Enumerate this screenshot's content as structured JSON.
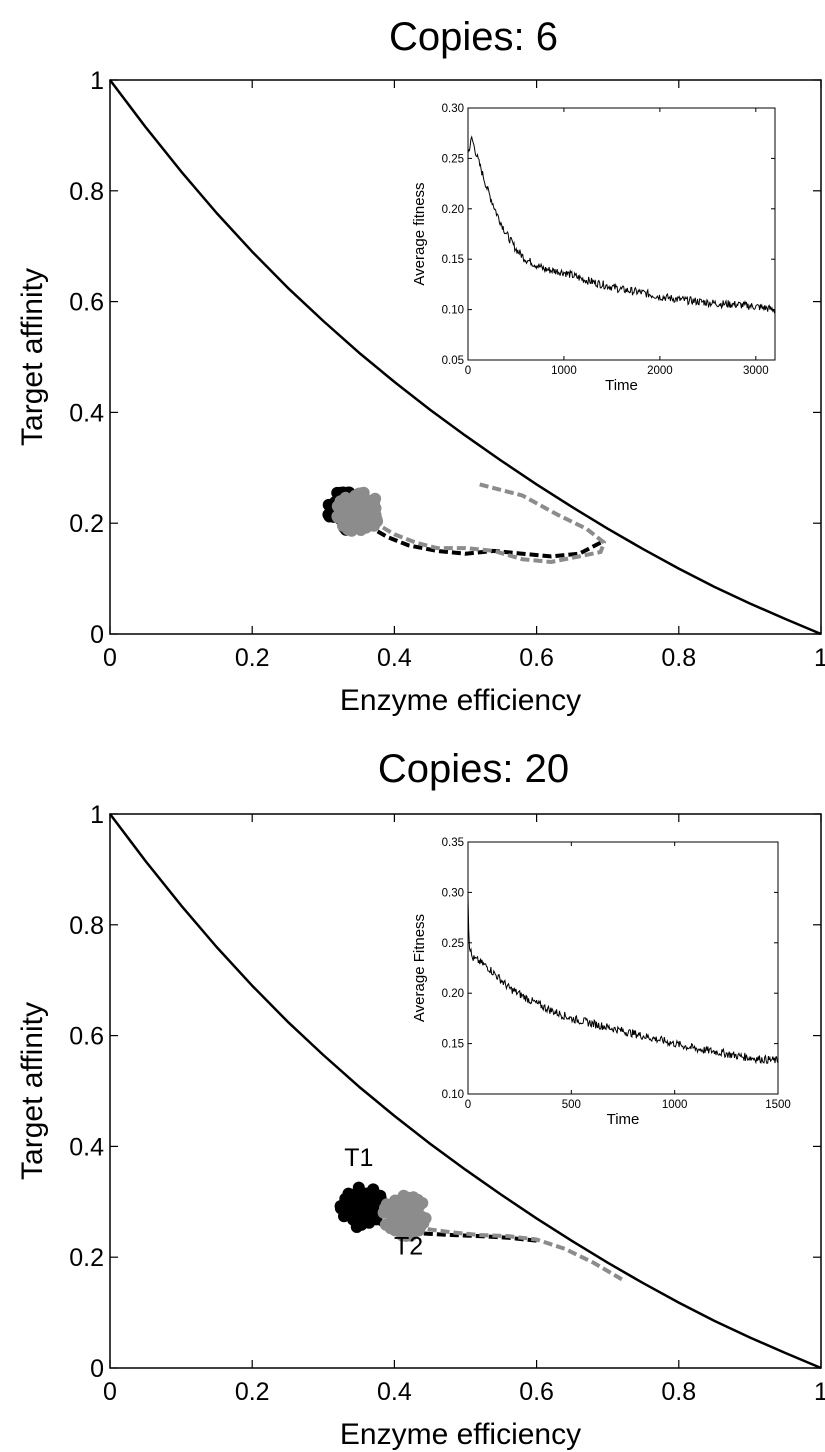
{
  "chart_data": [
    {
      "type": "line",
      "title": "Copies: 6",
      "xlabel": "Enzyme efficiency",
      "ylabel": "Target affinity",
      "xlim": [
        0,
        1
      ],
      "ylim": [
        0,
        1
      ],
      "xticks": [
        "0",
        "0.2",
        "0.4",
        "0.6",
        "0.8",
        "1"
      ],
      "yticks": [
        "0",
        "0.2",
        "0.4",
        "0.6",
        "0.8",
        "1"
      ],
      "grid": false,
      "series": [
        {
          "role": "front",
          "color": "#000000",
          "x": [
            0,
            0.05,
            0.1,
            0.15,
            0.2,
            0.25,
            0.3,
            0.35,
            0.4,
            0.45,
            0.5,
            0.55,
            0.6,
            0.65,
            0.7,
            0.75,
            0.8,
            0.85,
            0.9,
            0.95,
            1
          ],
          "y": [
            1,
            0.915,
            0.835,
            0.76,
            0.69,
            0.625,
            0.565,
            0.508,
            0.455,
            0.405,
            0.358,
            0.313,
            0.27,
            0.229,
            0.19,
            0.153,
            0.118,
            0.085,
            0.055,
            0.027,
            0
          ]
        },
        {
          "role": "trajectory",
          "color": "#000000",
          "x": [
            0.69,
            0.66,
            0.62,
            0.58,
            0.54,
            0.5,
            0.46,
            0.42,
            0.39,
            0.37,
            0.35
          ],
          "y": [
            0.165,
            0.145,
            0.14,
            0.145,
            0.15,
            0.145,
            0.15,
            0.16,
            0.175,
            0.19,
            0.2
          ]
        },
        {
          "role": "trajectory",
          "color": "#8c8c8c",
          "x": [
            0.52,
            0.58,
            0.63,
            0.67,
            0.695,
            0.69,
            0.66,
            0.62,
            0.58,
            0.54,
            0.5,
            0.46,
            0.43,
            0.4,
            0.38,
            0.36
          ],
          "y": [
            0.27,
            0.25,
            0.215,
            0.19,
            0.165,
            0.148,
            0.14,
            0.13,
            0.135,
            0.15,
            0.155,
            0.155,
            0.165,
            0.18,
            0.195,
            0.205
          ]
        }
      ],
      "clusters": [
        {
          "color": "#000000",
          "x": 0.335,
          "y": 0.225
        },
        {
          "color": "#8c8c8c",
          "x": 0.35,
          "y": 0.22
        }
      ],
      "inset": {
        "type": "line",
        "xlabel": "Time",
        "ylabel": "Average fitness",
        "xlim": [
          0,
          3200
        ],
        "ylim": [
          0.05,
          0.3
        ],
        "xticks": [
          "0",
          "1000",
          "2000",
          "3000"
        ],
        "yticks": [
          "0.05",
          "0.10",
          "0.15",
          "0.20",
          "0.25",
          "0.30"
        ],
        "x": [
          0,
          40,
          100,
          200,
          300,
          400,
          500,
          600,
          700,
          800,
          1000,
          1200,
          1400,
          1600,
          1800,
          2000,
          2200,
          2400,
          2600,
          2800,
          3000,
          3200
        ],
        "y": [
          0.255,
          0.27,
          0.25,
          0.22,
          0.195,
          0.175,
          0.16,
          0.15,
          0.145,
          0.14,
          0.137,
          0.13,
          0.125,
          0.12,
          0.117,
          0.113,
          0.11,
          0.108,
          0.106,
          0.105,
          0.103,
          0.1
        ]
      }
    },
    {
      "type": "line",
      "title": "Copies: 20",
      "xlabel": "Enzyme efficiency",
      "ylabel": "Target affinity",
      "xlim": [
        0,
        1
      ],
      "ylim": [
        0,
        1
      ],
      "xticks": [
        "0",
        "0.2",
        "0.4",
        "0.6",
        "0.8",
        "1"
      ],
      "yticks": [
        "0",
        "0.2",
        "0.4",
        "0.6",
        "0.8",
        "1"
      ],
      "grid": false,
      "series": [
        {
          "role": "front",
          "color": "#000000",
          "x": [
            0,
            0.05,
            0.1,
            0.15,
            0.2,
            0.25,
            0.3,
            0.35,
            0.4,
            0.45,
            0.5,
            0.55,
            0.6,
            0.65,
            0.7,
            0.75,
            0.8,
            0.85,
            0.9,
            0.95,
            1
          ],
          "y": [
            1,
            0.915,
            0.835,
            0.76,
            0.69,
            0.625,
            0.565,
            0.508,
            0.455,
            0.405,
            0.358,
            0.313,
            0.27,
            0.229,
            0.19,
            0.153,
            0.118,
            0.085,
            0.055,
            0.027,
            0
          ]
        },
        {
          "role": "trajectory",
          "color": "#000000",
          "x": [
            0.6,
            0.56,
            0.52,
            0.48,
            0.45,
            0.42,
            0.4,
            0.38,
            0.36
          ],
          "y": [
            0.23,
            0.235,
            0.238,
            0.24,
            0.242,
            0.245,
            0.25,
            0.26,
            0.275
          ]
        },
        {
          "role": "trajectory",
          "color": "#8c8c8c",
          "x": [
            0.72,
            0.68,
            0.64,
            0.6,
            0.56,
            0.52,
            0.48,
            0.45,
            0.43
          ],
          "y": [
            0.16,
            0.19,
            0.215,
            0.232,
            0.238,
            0.24,
            0.245,
            0.25,
            0.26
          ]
        }
      ],
      "clusters": [
        {
          "color": "#000000",
          "x": 0.355,
          "y": 0.29
        },
        {
          "color": "#8c8c8c",
          "x": 0.415,
          "y": 0.275
        }
      ],
      "annotations": [
        {
          "text": "T1",
          "x": 0.35,
          "y": 0.365
        },
        {
          "text": "T2",
          "x": 0.42,
          "y": 0.205
        }
      ],
      "inset": {
        "type": "line",
        "xlabel": "Time",
        "ylabel": "Average Fitness",
        "xlim": [
          0,
          1500
        ],
        "ylim": [
          0.1,
          0.35
        ],
        "xticks": [
          "0",
          "500",
          "1000",
          "1500"
        ],
        "yticks": [
          "0.10",
          "0.15",
          "0.20",
          "0.25",
          "0.30",
          "0.35"
        ],
        "x": [
          0,
          5,
          20,
          50,
          100,
          150,
          200,
          300,
          400,
          500,
          600,
          700,
          800,
          900,
          1000,
          1100,
          1200,
          1300,
          1400,
          1500
        ],
        "y": [
          0.3,
          0.25,
          0.235,
          0.232,
          0.225,
          0.215,
          0.205,
          0.193,
          0.183,
          0.175,
          0.17,
          0.165,
          0.16,
          0.155,
          0.15,
          0.145,
          0.142,
          0.138,
          0.135,
          0.133
        ]
      }
    }
  ]
}
